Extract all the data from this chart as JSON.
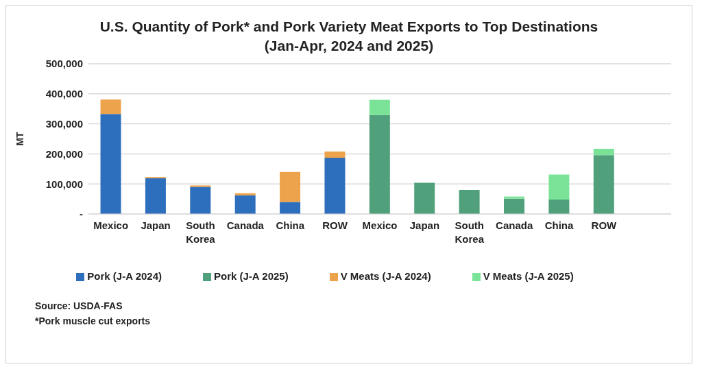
{
  "chart_data": {
    "type": "bar",
    "title": "U.S. Quantity of Pork* and Pork Variety Meat Exports to Top Destinations",
    "subtitle": "(Jan-Apr, 2024 and 2025)",
    "ylabel": "MT",
    "categories": [
      "Mexico",
      "Japan",
      "South Korea",
      "Canada",
      "China",
      "ROW",
      "Mexico",
      "Japan",
      "South Korea",
      "Canada",
      "China",
      "ROW",
      null
    ],
    "series": [
      {
        "name": "Pork (J-A 2024)",
        "color": "#2e6fbd",
        "values": [
          333000,
          119000,
          90000,
          62000,
          40000,
          187000,
          null,
          null,
          null,
          null,
          null,
          null,
          null
        ]
      },
      {
        "name": "V Meats (J-A 2024)",
        "color": "#eda34c",
        "values": [
          48000,
          4000,
          5000,
          7000,
          100000,
          21000,
          null,
          null,
          null,
          null,
          null,
          null,
          null
        ]
      },
      {
        "name": "Pork (J-A 2025)",
        "color": "#4fa07b",
        "values": [
          null,
          null,
          null,
          null,
          null,
          null,
          329000,
          104000,
          80000,
          51000,
          48000,
          196000,
          null
        ]
      },
      {
        "name": "V Meats (J-A 2025)",
        "color": "#7ae398",
        "values": [
          null,
          null,
          null,
          null,
          null,
          null,
          51000,
          null,
          null,
          7000,
          83000,
          21000,
          null
        ]
      }
    ],
    "stacked": true,
    "ylim": [
      0,
      500000
    ],
    "yticks": [
      {
        "value": 0,
        "label": "-"
      },
      {
        "value": 100000,
        "label": "100,000"
      },
      {
        "value": 200000,
        "label": "200,000"
      },
      {
        "value": 300000,
        "label": "300,000"
      },
      {
        "value": 400000,
        "label": "400,000"
      },
      {
        "value": 500000,
        "label": "500,000"
      }
    ],
    "grid": "y",
    "legend": "bottom",
    "annotations": [
      "Source: USDA-FAS",
      "*Pork muscle cut exports"
    ]
  }
}
